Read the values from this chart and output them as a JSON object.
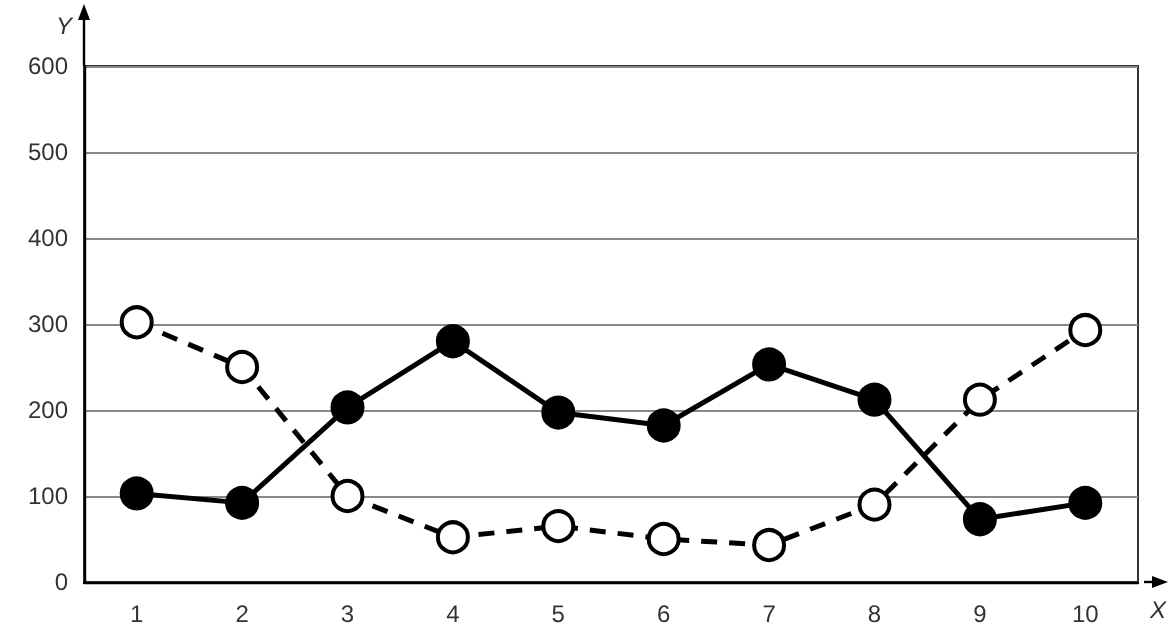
{
  "chart_data": {
    "type": "line",
    "xlabel": "X",
    "ylabel": "Y",
    "categories": [
      "1",
      "2",
      "3",
      "4",
      "5",
      "6",
      "7",
      "8",
      "9",
      "10"
    ],
    "series": [
      {
        "color": "#000000",
        "marker": "circle",
        "line_style": "solid",
        "values": [
          103,
          92,
          203,
          280,
          197,
          182,
          253,
          212,
          73,
          92
        ]
      },
      {
        "color": "#000000",
        "marker": "circle",
        "line_style": "dashed",
        "values": [
          302,
          250,
          100,
          52,
          65,
          50,
          43,
          90,
          212,
          293
        ]
      }
    ],
    "ylim": [
      0,
      600
    ],
    "yticks": [
      0,
      100,
      200,
      300,
      400,
      500,
      600
    ],
    "grid": "y"
  }
}
